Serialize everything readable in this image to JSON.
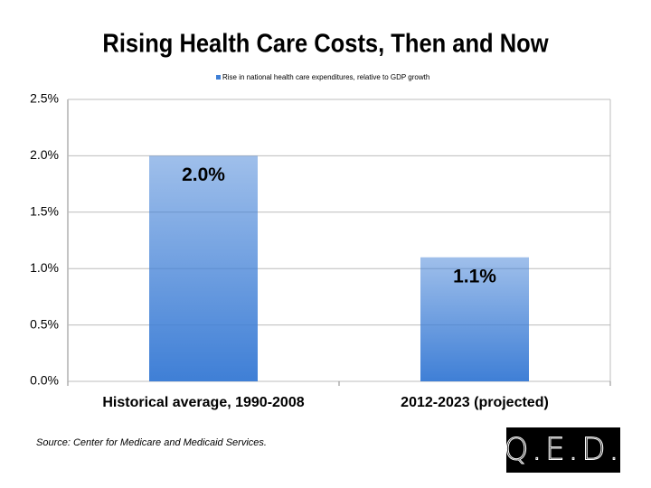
{
  "chart_data": {
    "type": "bar",
    "title": "Rising Health Care Costs, Then and Now",
    "categories": [
      "Historical average, 1990-2008",
      "2012-2023 (projected)"
    ],
    "series": [
      {
        "name": "Rise in national health care expenditures, relative to GDP growth",
        "color": "#3f7fd6",
        "values": [
          2.0,
          1.1
        ],
        "value_labels": [
          "2.0%",
          "1.1%"
        ]
      }
    ],
    "ylim": [
      0,
      2.5
    ],
    "yticks": [
      {
        "value": 0,
        "label": "0.0%"
      },
      {
        "value": 0.5,
        "label": "0.5%"
      },
      {
        "value": 1,
        "label": "1.0%"
      },
      {
        "value": 1.5,
        "label": "1.5%"
      },
      {
        "value": 2,
        "label": "2.0%"
      },
      {
        "value": 2.5,
        "label": "2.5%"
      }
    ],
    "grid": true,
    "legend": "top",
    "source": "Source: Center for Medicare and Medicaid Services.",
    "logo": "Q.E.D."
  }
}
